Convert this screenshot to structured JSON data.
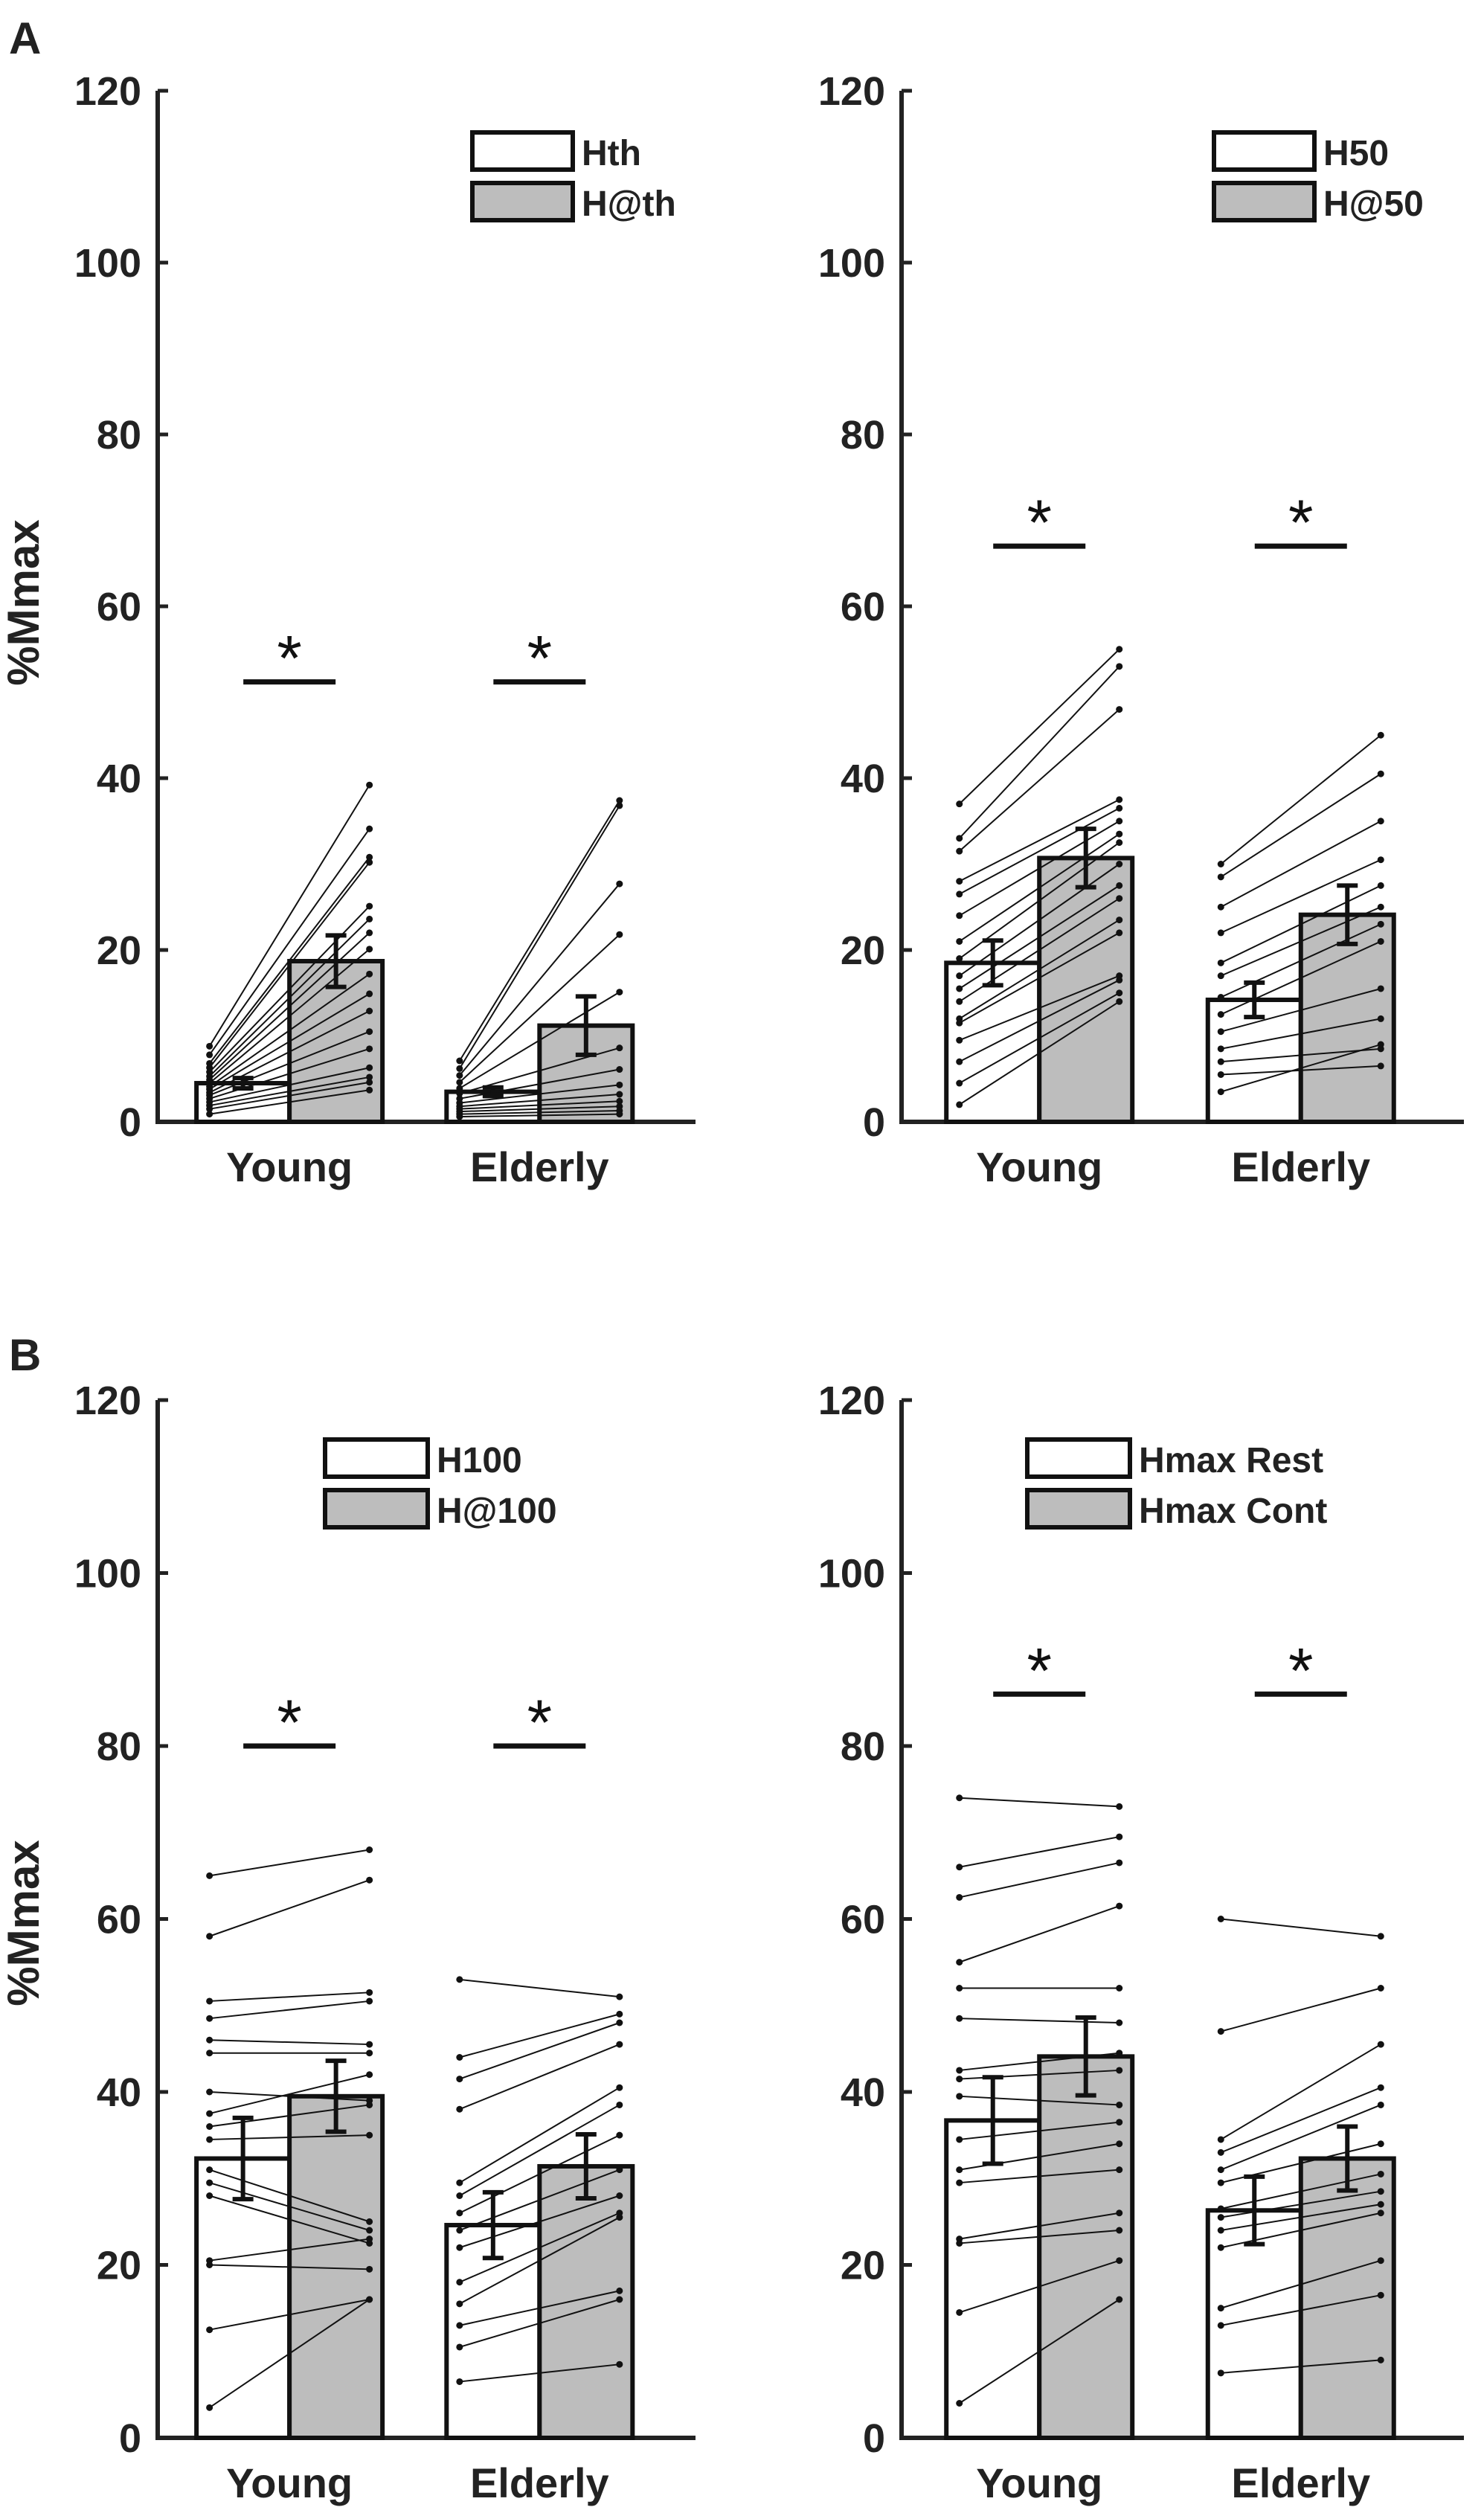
{
  "figure": {
    "panel_labels": [
      "A",
      "B"
    ]
  },
  "colors": {
    "axis": "#222222",
    "bar_white": "#ffffff",
    "bar_gray": "#bdbdbd",
    "line": "#111111"
  },
  "chart_data": [
    {
      "type": "bar",
      "panel": "A",
      "ylabel": "%Mmax",
      "ylim": [
        0,
        120
      ],
      "yticks": [
        "0",
        "20",
        "40",
        "60",
        "80",
        "100",
        "120"
      ],
      "categories": [
        "Young",
        "Elderly"
      ],
      "legend": [
        "Hth",
        "H@th"
      ],
      "legend_position": "top-right",
      "significance": [
        "*",
        "*"
      ],
      "series": [
        {
          "name": "Hth",
          "values": [
            4.5,
            3.5
          ],
          "error": [
            0.6,
            0.5
          ]
        },
        {
          "name": "H@th",
          "values": [
            18.7,
            11.2
          ],
          "error": [
            3.0,
            3.4
          ]
        }
      ],
      "subjects": [
        [
          [
            8.8,
            39.2
          ],
          [
            7.8,
            34.1
          ],
          [
            6.8,
            30.8
          ],
          [
            6.3,
            30.2
          ],
          [
            5.8,
            25.1
          ],
          [
            5.3,
            23.6
          ],
          [
            4.9,
            22.0
          ],
          [
            4.5,
            20.1
          ],
          [
            4.1,
            17.2
          ],
          [
            3.8,
            14.9
          ],
          [
            3.4,
            12.9
          ],
          [
            3.1,
            10.5
          ],
          [
            2.7,
            8.5
          ],
          [
            2.3,
            6.3
          ],
          [
            1.9,
            5.2
          ],
          [
            1.5,
            4.6
          ],
          [
            0.9,
            3.7
          ]
        ],
        [
          [
            7.1,
            37.4
          ],
          [
            6.2,
            36.8
          ],
          [
            5.4,
            27.7
          ],
          [
            4.6,
            21.8
          ],
          [
            3.9,
            15.1
          ],
          [
            3.3,
            8.6
          ],
          [
            2.7,
            6.1
          ],
          [
            2.2,
            4.3
          ],
          [
            1.8,
            3.2
          ],
          [
            1.5,
            2.4
          ],
          [
            1.2,
            1.8
          ],
          [
            0.9,
            1.3
          ],
          [
            0.6,
            0.9
          ]
        ]
      ]
    },
    {
      "type": "bar",
      "panel": "A",
      "ylabel": "",
      "ylim": [
        0,
        120
      ],
      "yticks": [
        "0",
        "20",
        "40",
        "60",
        "80",
        "100",
        "120"
      ],
      "categories": [
        "Young",
        "Elderly"
      ],
      "legend": [
        "H50",
        "H@50"
      ],
      "legend_position": "top-right",
      "significance": [
        "*",
        "*"
      ],
      "series": [
        {
          "name": "H50",
          "values": [
            18.5,
            14.2
          ],
          "error": [
            2.6,
            2.0
          ]
        },
        {
          "name": "H@50",
          "values": [
            30.7,
            24.1
          ],
          "error": [
            3.4,
            3.4
          ]
        }
      ],
      "subjects": [
        [
          [
            37.0,
            55.0
          ],
          [
            33.0,
            53.0
          ],
          [
            31.5,
            48.0
          ],
          [
            28.0,
            37.5
          ],
          [
            26.5,
            36.5
          ],
          [
            24.0,
            35.0
          ],
          [
            21.0,
            33.5
          ],
          [
            19.0,
            32.5
          ],
          [
            17.0,
            30.0
          ],
          [
            15.5,
            27.5
          ],
          [
            14.0,
            26.0
          ],
          [
            12.0,
            23.5
          ],
          [
            11.5,
            22.0
          ],
          [
            9.5,
            17.0
          ],
          [
            7.0,
            16.5
          ],
          [
            4.5,
            15.0
          ],
          [
            2.0,
            14.0
          ]
        ],
        [
          [
            30.0,
            45.0
          ],
          [
            28.5,
            40.5
          ],
          [
            25.0,
            35.0
          ],
          [
            22.0,
            30.5
          ],
          [
            18.5,
            27.5
          ],
          [
            17.0,
            25.0
          ],
          [
            14.5,
            23.0
          ],
          [
            12.5,
            21.0
          ],
          [
            10.5,
            15.5
          ],
          [
            8.5,
            12.0
          ],
          [
            7.0,
            8.5
          ],
          [
            5.5,
            6.5
          ],
          [
            3.5,
            9.0
          ]
        ]
      ]
    },
    {
      "type": "bar",
      "panel": "B",
      "ylabel": "%Mmax",
      "ylim": [
        0,
        120
      ],
      "yticks": [
        "0",
        "20",
        "40",
        "60",
        "80",
        "100",
        "120"
      ],
      "categories": [
        "Young",
        "Elderly"
      ],
      "legend": [
        "H100",
        "H@100"
      ],
      "legend_position": "top-right",
      "significance": [
        "*",
        "*"
      ],
      "series": [
        {
          "name": "H100",
          "values": [
            32.3,
            24.6
          ],
          "error": [
            4.7,
            3.8
          ]
        },
        {
          "name": "H@100",
          "values": [
            39.5,
            31.4
          ],
          "error": [
            4.1,
            3.7
          ]
        }
      ],
      "subjects": [
        [
          [
            65.0,
            68.0
          ],
          [
            58.0,
            64.5
          ],
          [
            50.5,
            51.5
          ],
          [
            48.5,
            50.5
          ],
          [
            46.0,
            45.5
          ],
          [
            44.5,
            44.5
          ],
          [
            40.0,
            39.0
          ],
          [
            37.5,
            42.0
          ],
          [
            36.0,
            38.5
          ],
          [
            34.5,
            35.0
          ],
          [
            31.0,
            25.0
          ],
          [
            29.5,
            24.0
          ],
          [
            28.0,
            22.5
          ],
          [
            20.5,
            23.0
          ],
          [
            20.0,
            19.5
          ],
          [
            12.5,
            16.0
          ],
          [
            3.5,
            16.0
          ]
        ],
        [
          [
            53.0,
            51.0
          ],
          [
            44.0,
            49.0
          ],
          [
            41.5,
            48.0
          ],
          [
            38.0,
            45.5
          ],
          [
            29.5,
            40.5
          ],
          [
            28.0,
            38.5
          ],
          [
            26.0,
            35.0
          ],
          [
            24.0,
            31.0
          ],
          [
            22.0,
            28.0
          ],
          [
            18.0,
            26.0
          ],
          [
            15.5,
            25.5
          ],
          [
            13.0,
            17.0
          ],
          [
            10.5,
            16.0
          ],
          [
            6.5,
            8.5
          ]
        ]
      ]
    },
    {
      "type": "bar",
      "panel": "B",
      "ylabel": "",
      "ylim": [
        0,
        120
      ],
      "yticks": [
        "0",
        "20",
        "40",
        "60",
        "80",
        "100",
        "120"
      ],
      "categories": [
        "Young",
        "Elderly"
      ],
      "legend": [
        "Hmax Rest",
        "Hmax Cont"
      ],
      "legend_position": "top-right",
      "significance": [
        "*",
        "*"
      ],
      "series": [
        {
          "name": "Hmax Rest",
          "values": [
            36.7,
            26.3
          ],
          "error": [
            5.0,
            3.9
          ]
        },
        {
          "name": "Hmax Cont",
          "values": [
            44.1,
            32.3
          ],
          "error": [
            4.5,
            3.7
          ]
        }
      ],
      "subjects": [
        [
          [
            74.0,
            73.0
          ],
          [
            66.0,
            69.5
          ],
          [
            62.5,
            66.5
          ],
          [
            55.0,
            61.5
          ],
          [
            52.0,
            52.0
          ],
          [
            48.5,
            48.0
          ],
          [
            42.5,
            44.5
          ],
          [
            41.5,
            42.5
          ],
          [
            39.5,
            38.5
          ],
          [
            34.5,
            36.5
          ],
          [
            31.0,
            34.0
          ],
          [
            29.5,
            31.0
          ],
          [
            23.0,
            26.0
          ],
          [
            22.5,
            24.0
          ],
          [
            14.5,
            20.5
          ],
          [
            4.0,
            16.0
          ]
        ],
        [
          [
            60.0,
            58.0
          ],
          [
            47.0,
            52.0
          ],
          [
            34.5,
            45.5
          ],
          [
            33.0,
            40.5
          ],
          [
            31.0,
            38.5
          ],
          [
            29.5,
            34.0
          ],
          [
            26.5,
            30.5
          ],
          [
            25.5,
            28.5
          ],
          [
            24.0,
            27.0
          ],
          [
            22.0,
            26.0
          ],
          [
            15.0,
            20.5
          ],
          [
            13.0,
            16.5
          ],
          [
            7.5,
            9.0
          ]
        ]
      ]
    }
  ]
}
